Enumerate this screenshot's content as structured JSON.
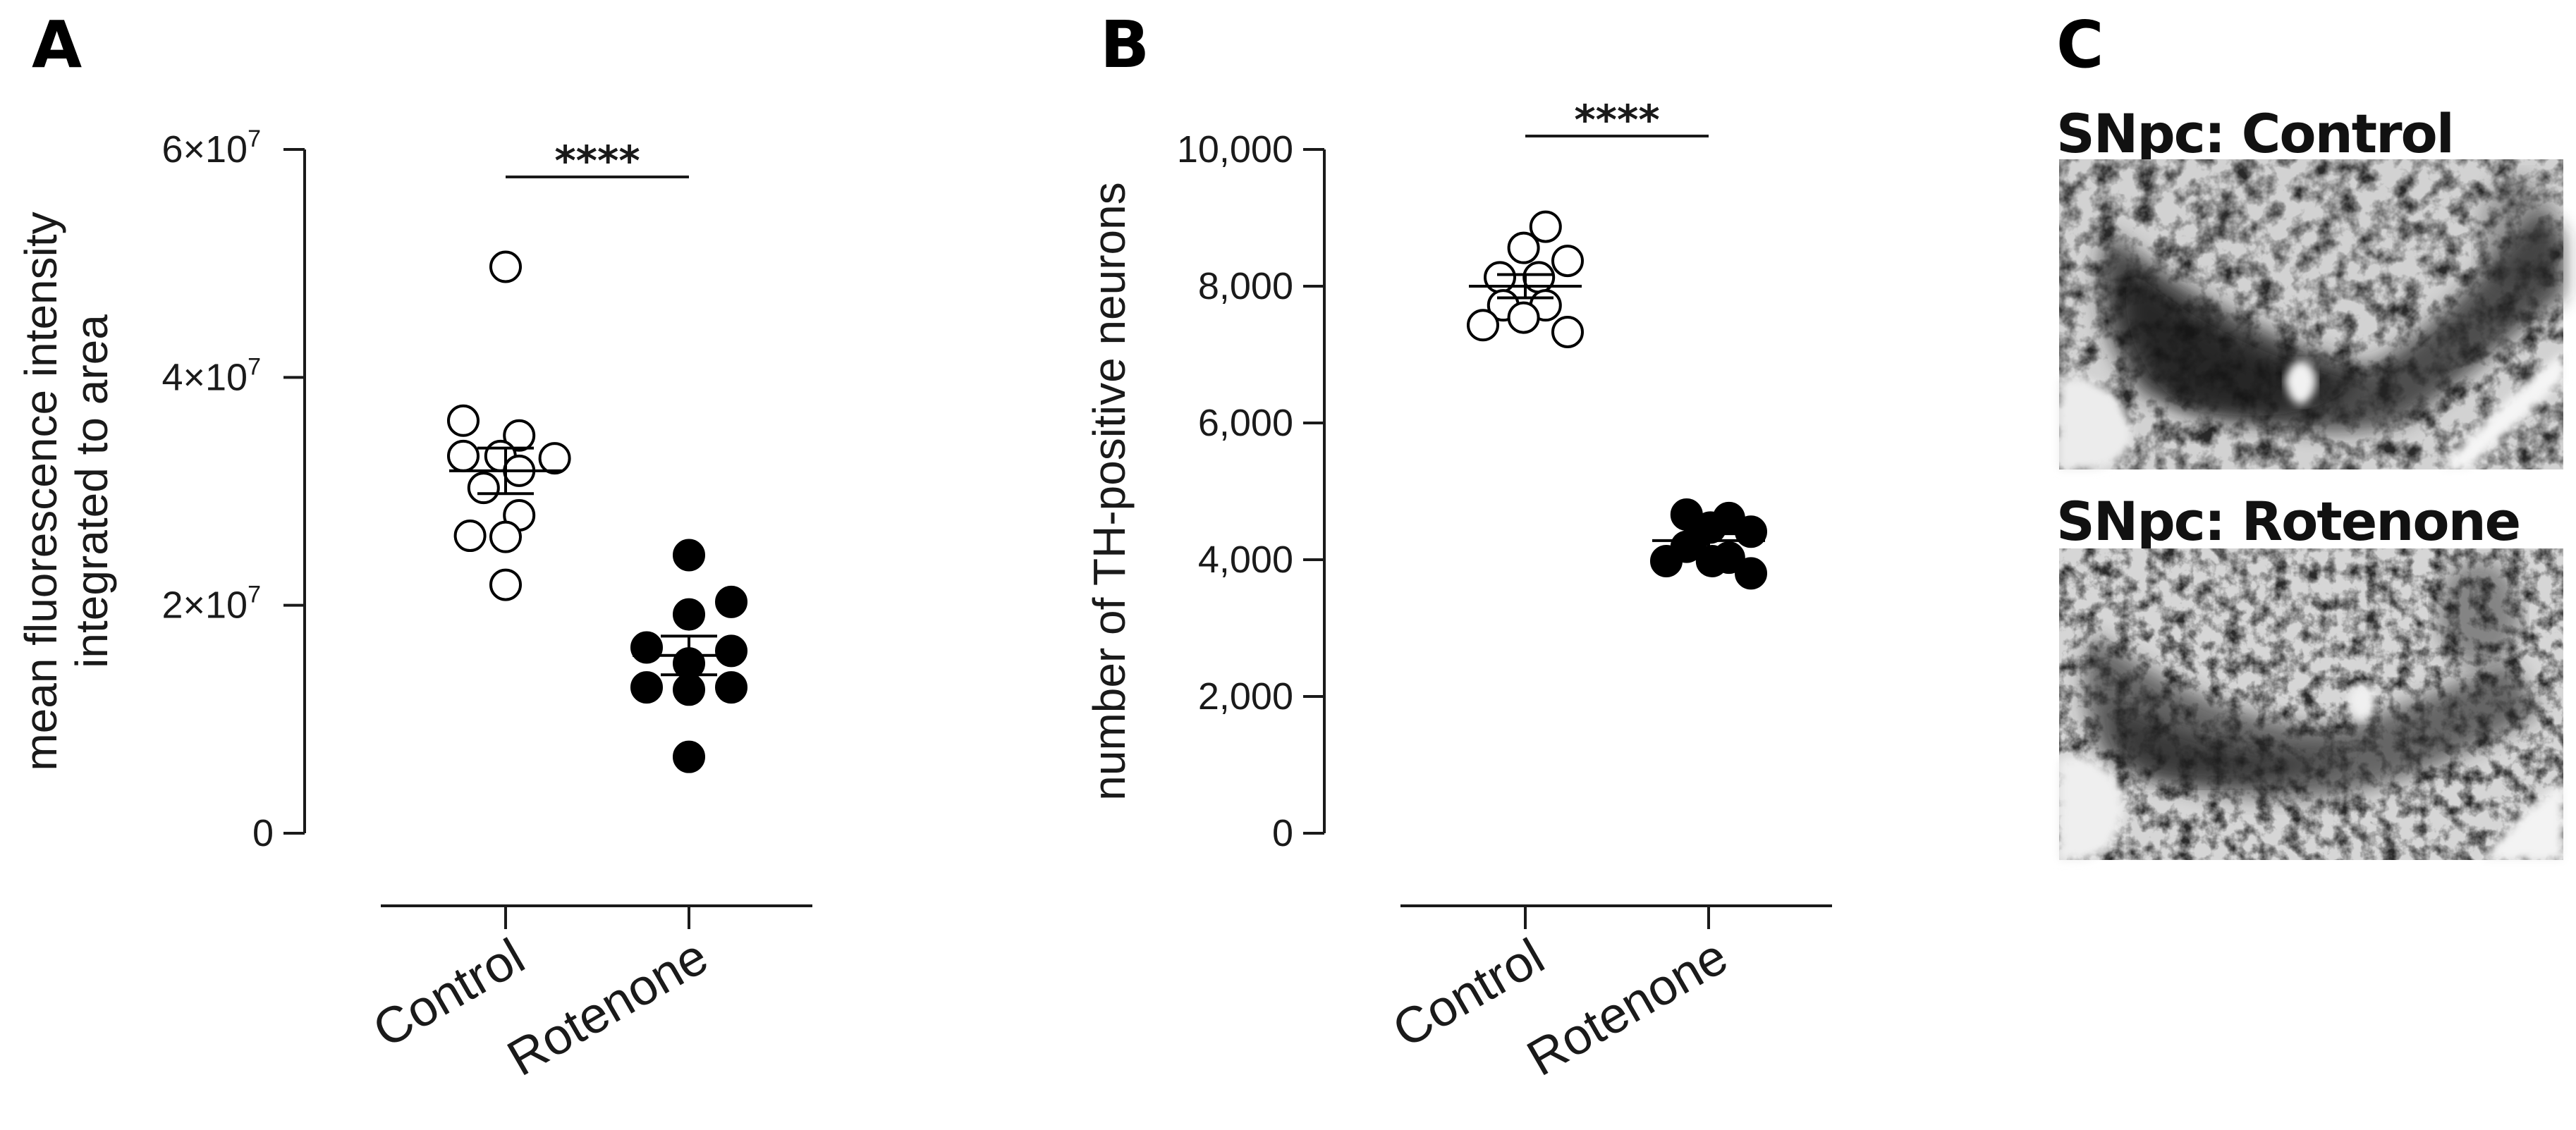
{
  "panels": {
    "A": "A",
    "B": "B",
    "C": "C"
  },
  "chart_data": [
    {
      "type": "scatter",
      "panel": "A",
      "ylabel_line1": "mean fluorescence intensity",
      "ylabel_line2": "integrated to area",
      "categories": [
        "Control",
        "Rotenone"
      ],
      "ylim": [
        0,
        60000000
      ],
      "yticks": [
        {
          "value": 0,
          "base": "0",
          "exp": ""
        },
        {
          "value": 20000000,
          "base": "2×10",
          "exp": "7"
        },
        {
          "value": 40000000,
          "base": "4×10",
          "exp": "7"
        },
        {
          "value": 60000000,
          "base": "6×10",
          "exp": "7"
        }
      ],
      "series": [
        {
          "category": "Control",
          "filled": false,
          "points": [
            {
              "y": 49700000,
              "dx": 0.0
            },
            {
              "y": 36200000,
              "dx": -0.25
            },
            {
              "y": 34900000,
              "dx": 0.08
            },
            {
              "y": 33100000,
              "dx": -0.25
            },
            {
              "y": 33100000,
              "dx": -0.03
            },
            {
              "y": 32900000,
              "dx": 0.29
            },
            {
              "y": 31800000,
              "dx": 0.08
            },
            {
              "y": 30300000,
              "dx": -0.13
            },
            {
              "y": 27900000,
              "dx": 0.08
            },
            {
              "y": 26100000,
              "dx": -0.21
            },
            {
              "y": 26000000,
              "dx": 0.0
            },
            {
              "y": 21800000,
              "dx": 0.0
            }
          ],
          "mean": 31800000,
          "sem": 2000000
        },
        {
          "category": "Rotenone",
          "filled": true,
          "points": [
            {
              "y": 24400000,
              "dx": 0.0
            },
            {
              "y": 20300000,
              "dx": 0.25
            },
            {
              "y": 19200000,
              "dx": 0.0
            },
            {
              "y": 16300000,
              "dx": -0.25
            },
            {
              "y": 16000000,
              "dx": 0.25
            },
            {
              "y": 14900000,
              "dx": 0.0
            },
            {
              "y": 12800000,
              "dx": -0.25
            },
            {
              "y": 12800000,
              "dx": 0.25
            },
            {
              "y": 12600000,
              "dx": 0.0
            },
            {
              "y": 6700000,
              "dx": 0.0
            }
          ],
          "mean": 15600000,
          "sem": 1700000
        }
      ],
      "significance": "****"
    },
    {
      "type": "scatter",
      "panel": "B",
      "ylabel": "number of TH-positive neurons",
      "categories": [
        "Control",
        "Rotenone"
      ],
      "ylim": [
        0,
        10000
      ],
      "yticks": [
        {
          "value": 0,
          "label": "0"
        },
        {
          "value": 2000,
          "label": "2,000"
        },
        {
          "value": 4000,
          "label": "4,000"
        },
        {
          "value": 6000,
          "label": "6,000"
        },
        {
          "value": 8000,
          "label": "8,000"
        },
        {
          "value": 10000,
          "label": "10,000"
        }
      ],
      "series": [
        {
          "category": "Control",
          "filled": false,
          "points": [
            {
              "y": 8870,
              "dx": 0.12
            },
            {
              "y": 8560,
              "dx": -0.01
            },
            {
              "y": 8370,
              "dx": 0.25
            },
            {
              "y": 8130,
              "dx": -0.15
            },
            {
              "y": 8130,
              "dx": 0.08
            },
            {
              "y": 7720,
              "dx": -0.13
            },
            {
              "y": 7720,
              "dx": 0.12
            },
            {
              "y": 7540,
              "dx": -0.01
            },
            {
              "y": 7430,
              "dx": -0.25
            },
            {
              "y": 7330,
              "dx": 0.25
            }
          ],
          "mean": 8000,
          "sem": 170
        },
        {
          "category": "Rotenone",
          "filled": true,
          "points": [
            {
              "y": 4660,
              "dx": -0.13
            },
            {
              "y": 4610,
              "dx": 0.12
            },
            {
              "y": 4470,
              "dx": 0.01
            },
            {
              "y": 4420,
              "dx": -0.05
            },
            {
              "y": 4410,
              "dx": 0.25
            },
            {
              "y": 4190,
              "dx": -0.13
            },
            {
              "y": 4030,
              "dx": 0.12
            },
            {
              "y": 3980,
              "dx": -0.25
            },
            {
              "y": 3980,
              "dx": 0.02
            },
            {
              "y": 3800,
              "dx": 0.25
            }
          ],
          "mean": 4280,
          "sem": 100
        }
      ],
      "significance": "****"
    }
  ],
  "micrographs": {
    "control_title": "SNpc: Control",
    "rotenone_title": "SNpc: Rotenone"
  }
}
